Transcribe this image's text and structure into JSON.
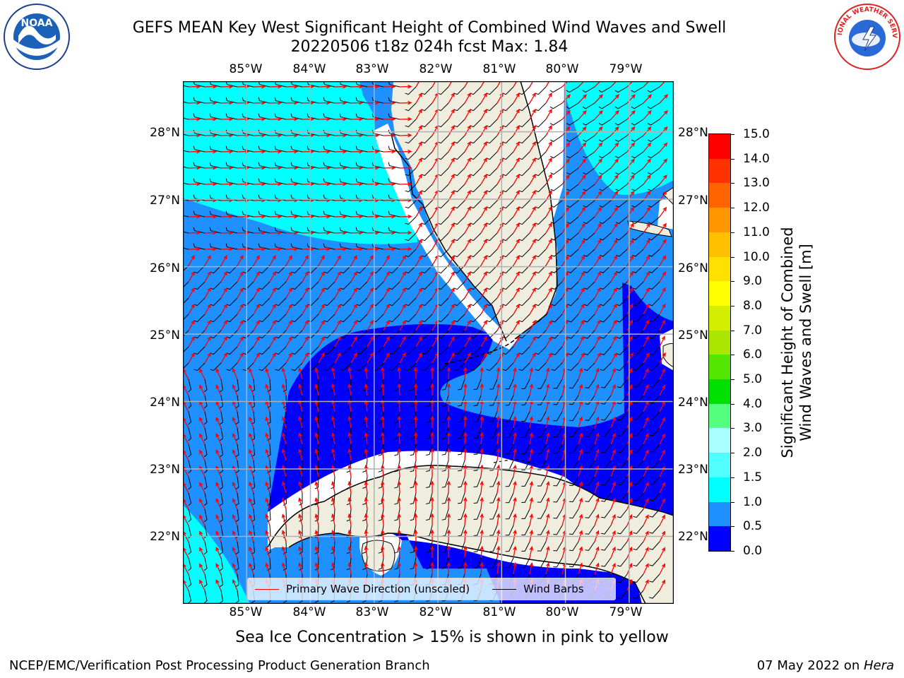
{
  "title": {
    "line1": "GEFS MEAN Key West Significant Height of Combined Wind Waves and Swell",
    "line2": "20220506 t18z 024h fcst   Max: 1.84"
  },
  "map": {
    "lon_ticks": [
      "85°W",
      "84°W",
      "83°W",
      "82°W",
      "81°W",
      "80°W",
      "79°W"
    ],
    "lat_ticks": [
      "28°N",
      "27°N",
      "26°N",
      "25°N",
      "24°N",
      "23°N",
      "22°N"
    ],
    "lon_range": [
      -86.0,
      -78.3
    ],
    "lat_range": [
      21.0,
      28.75
    ],
    "legend": {
      "wave_direction": "Primary Wave Direction (unscaled)",
      "wind_barbs": "Wind Barbs"
    },
    "colors": {
      "land": "#efedde",
      "wave_arrow": "#ff0000",
      "wind_barb": "#000000",
      "grid": "#b0b0b0"
    }
  },
  "colorbar": {
    "label_line1": "Significant Height of Combined",
    "label_line2": "Wind Waves and Swell [m]",
    "ticks": [
      "0.0",
      "0.5",
      "1.0",
      "1.5",
      "2.0",
      "3.0",
      "4.0",
      "5.0",
      "6.0",
      "7.0",
      "8.0",
      "9.0",
      "10.0",
      "11.0",
      "12.0",
      "13.0",
      "14.0",
      "15.0"
    ],
    "colors": [
      "#0000ff",
      "#1e90ff",
      "#00ffff",
      "#52ffff",
      "#a8ffff",
      "#55ff80",
      "#00e000",
      "#55e600",
      "#aae600",
      "#d4ee00",
      "#ffff00",
      "#ffe000",
      "#ffc000",
      "#ff9600",
      "#ff6400",
      "#ff3200",
      "#ff0000"
    ]
  },
  "sea_ice_note": "Sea Ice Concentration > 15% is shown in pink to yellow",
  "footer": {
    "left": "NCEP/EMC/Verification Post Processing Product Generation Branch",
    "date": "07 May 2022 on ",
    "host": "Hera"
  },
  "logos": {
    "noaa_text": "NOAA",
    "nws_text": "NATIONAL WEATHER SERVICE"
  }
}
